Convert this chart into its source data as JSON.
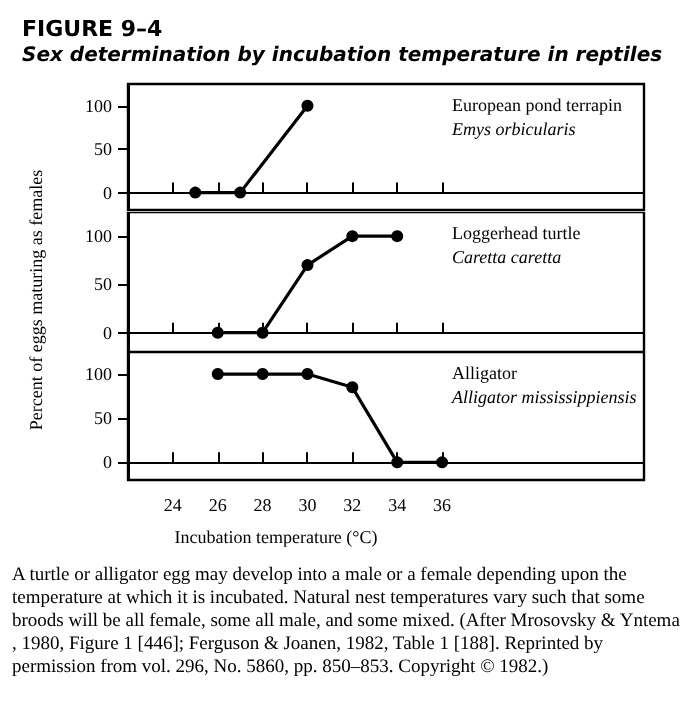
{
  "chart_data": [
    {
      "type": "line",
      "title": "FIGURE 9–4",
      "subtitle": "Sex determination by incubation temperature in reptiles",
      "x": [
        25,
        27,
        30
      ],
      "series": [
        {
          "name": "European pond terrapin",
          "color": "#000000",
          "values": [
            0,
            0,
            100
          ]
        }
      ],
      "annotations": [
        "Emys orbicularis"
      ],
      "xlim": [
        22,
        45
      ],
      "ylim": [
        -20,
        125
      ],
      "xticks": [
        24,
        26,
        28,
        30,
        32,
        34,
        36
      ],
      "yticks": [
        0,
        50,
        100
      ],
      "marker": "circle",
      "tick_labels": "y"
    },
    {
      "type": "line",
      "ylabel": "Percent of eggs maturing as females",
      "x": [
        26,
        28,
        30,
        32,
        34
      ],
      "series": [
        {
          "name": "Loggerhead turtle",
          "color": "#000000",
          "values": [
            0,
            0,
            70,
            100,
            100
          ]
        }
      ],
      "annotations": [
        "Caretta caretta"
      ],
      "xlim": [
        22,
        45
      ],
      "ylim": [
        -20,
        125
      ],
      "xticks": [
        24,
        26,
        28,
        30,
        32,
        34,
        36
      ],
      "yticks": [
        0,
        50,
        100
      ],
      "marker": "circle",
      "tick_labels": "y"
    },
    {
      "type": "line",
      "xlabel": "Incubation temperature (°C)",
      "x": [
        26,
        28,
        30,
        32,
        34,
        36
      ],
      "series": [
        {
          "name": "Alligator",
          "color": "#000000",
          "values": [
            100,
            100,
            100,
            85,
            0,
            0
          ]
        }
      ],
      "annotations": [
        "Alligator mississippiensis",
        "A turtle or alligator egg may develop into a male or a female depending upon the temperature at which it is incubated. Natural nest temperatures vary such that some broods will be all female, some all male, and some mixed. (After Mrosovsky & Yntema, 1980, Figure 1 [446]; Ferguson & Joanen, 1982, Table 1 [188]. Reprinted by permission from vol. 296, No. 5860, pp. 850–853. Copyright © 1982.)"
      ],
      "xlim": [
        22,
        45
      ],
      "ylim": [
        -20,
        125
      ],
      "xticks": [
        24,
        26,
        28,
        30,
        32,
        34,
        36
      ],
      "yticks": [
        0,
        50,
        100
      ],
      "marker": "circle"
    }
  ]
}
